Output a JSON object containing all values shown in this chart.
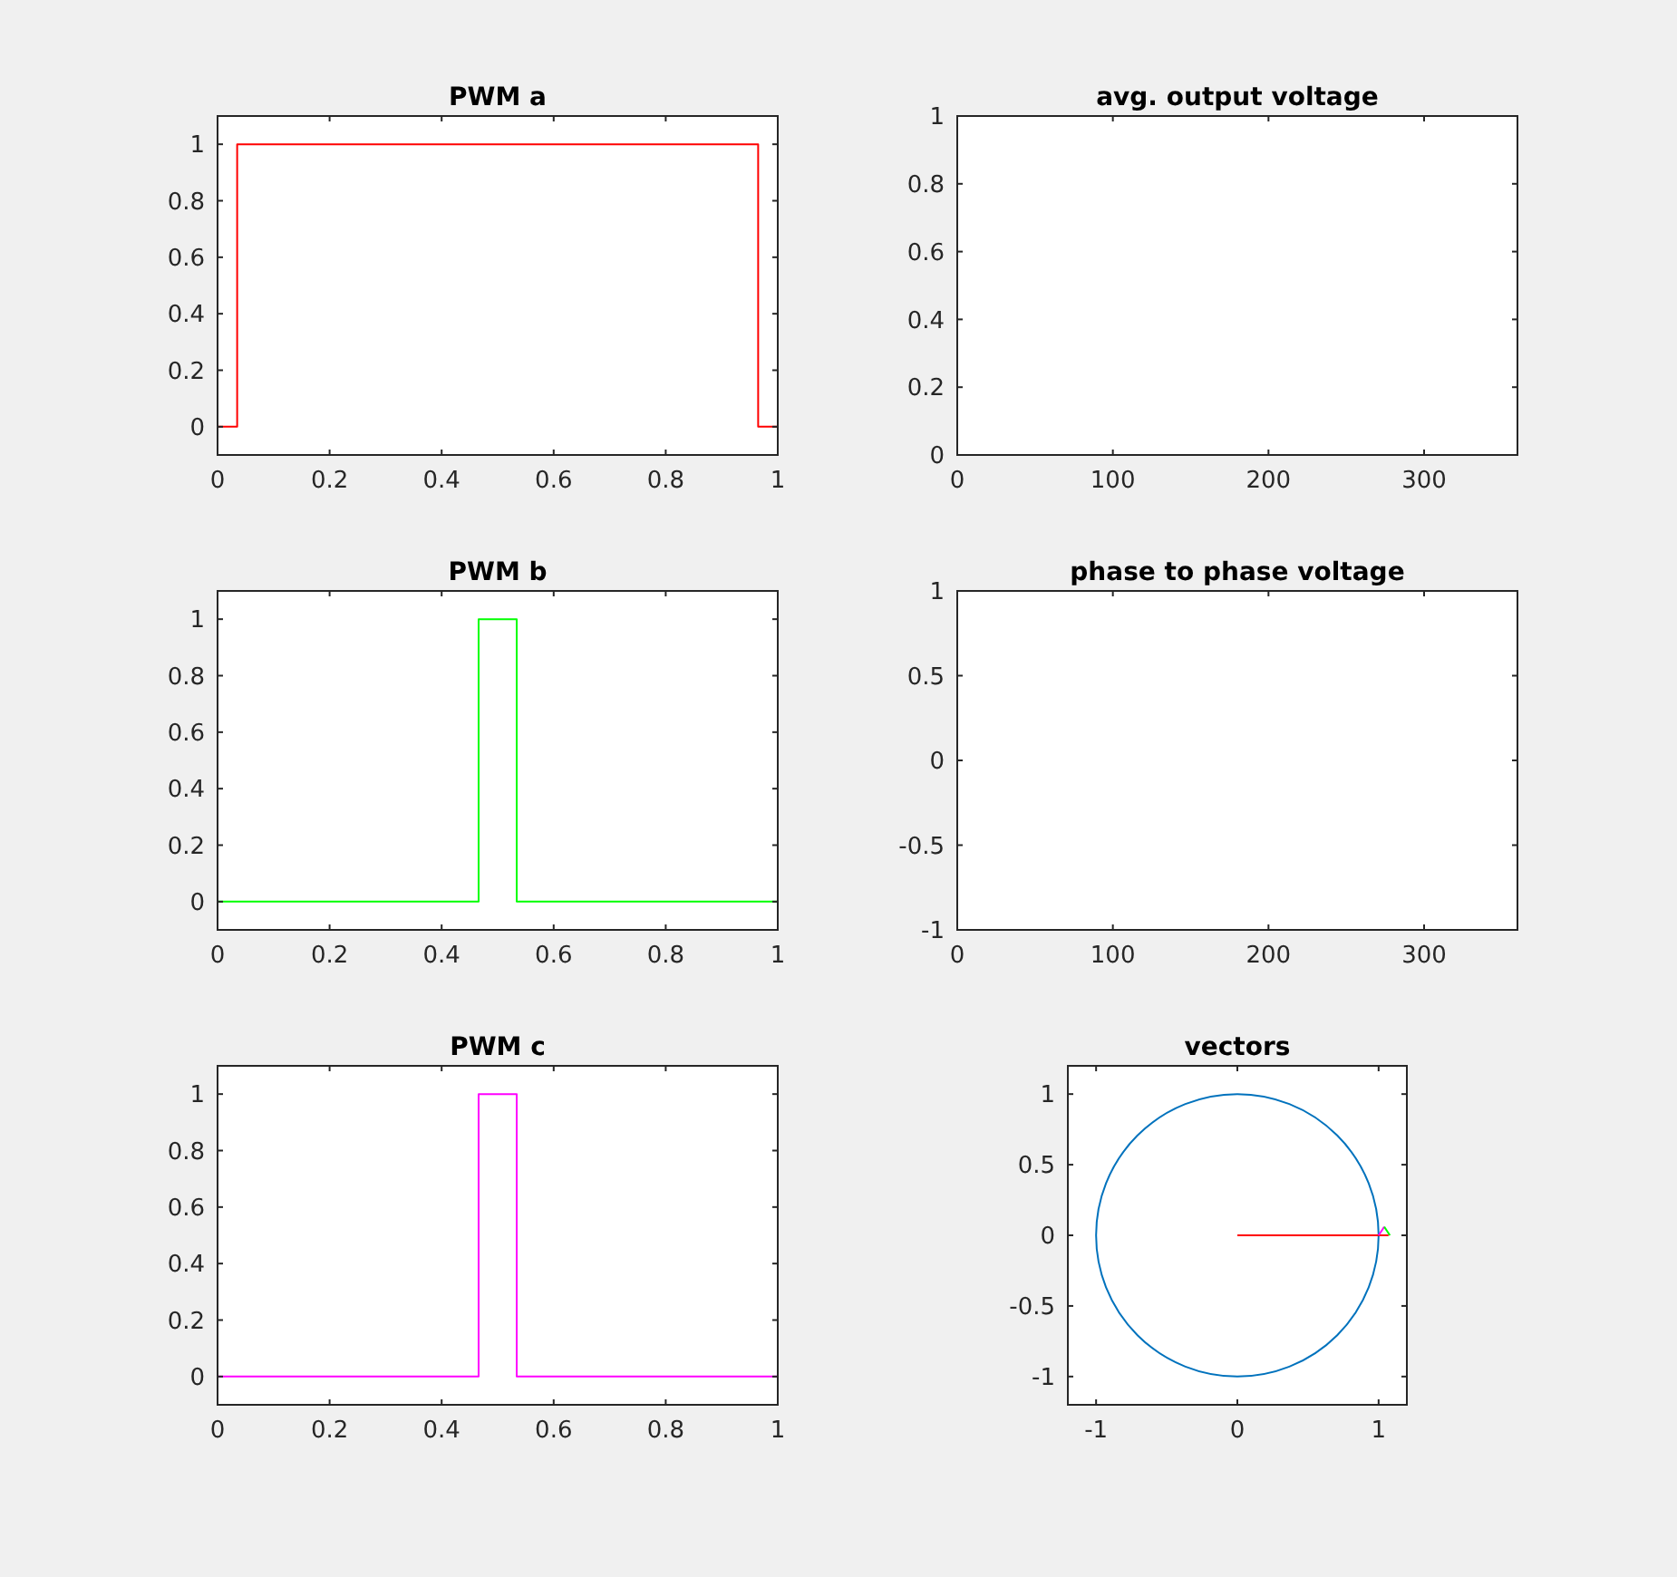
{
  "chart_data": [
    {
      "type": "step",
      "title": "PWM a",
      "xlim": [
        0,
        1
      ],
      "xticks": [
        0,
        0.2,
        0.4,
        0.6,
        0.8,
        1
      ],
      "ylim": [
        -0.1,
        1.1
      ],
      "yticks": [
        0,
        0.2,
        0.4,
        0.6,
        0.8,
        1
      ],
      "series": [
        {
          "color": "#ff0000",
          "x": [
            0,
            0.035,
            0.965,
            1
          ],
          "values": [
            0,
            1,
            0,
            0
          ]
        }
      ]
    },
    {
      "type": "line",
      "title": "avg. output voltage",
      "xlim": [
        0,
        360
      ],
      "xticks": [
        0,
        100,
        200,
        300
      ],
      "ylim": [
        0,
        1
      ],
      "yticks": [
        0,
        0.2,
        0.4,
        0.6,
        0.8,
        1
      ]
    },
    {
      "type": "step",
      "title": "PWM b",
      "xlim": [
        0,
        1
      ],
      "xticks": [
        0,
        0.2,
        0.4,
        0.6,
        0.8,
        1
      ],
      "ylim": [
        -0.1,
        1.1
      ],
      "yticks": [
        0,
        0.2,
        0.4,
        0.6,
        0.8,
        1
      ],
      "series": [
        {
          "color": "#00ff00",
          "x": [
            0,
            0.466,
            0.534,
            1
          ],
          "values": [
            0,
            1,
            0,
            0
          ]
        }
      ]
    },
    {
      "type": "line",
      "title": "phase to phase voltage",
      "xlim": [
        0,
        360
      ],
      "xticks": [
        0,
        100,
        200,
        300
      ],
      "ylim": [
        -1,
        1
      ],
      "yticks": [
        -1,
        -0.5,
        0,
        0.5,
        1
      ]
    },
    {
      "type": "step",
      "title": "PWM c",
      "xlim": [
        0,
        1
      ],
      "xticks": [
        0,
        0.2,
        0.4,
        0.6,
        0.8,
        1
      ],
      "ylim": [
        -0.1,
        1.1
      ],
      "yticks": [
        0,
        0.2,
        0.4,
        0.6,
        0.8,
        1
      ],
      "series": [
        {
          "color": "#ff00ff",
          "x": [
            0,
            0.466,
            0.534,
            1
          ],
          "values": [
            0,
            1,
            0,
            0
          ]
        }
      ]
    },
    {
      "type": "line",
      "title": "vectors",
      "xlim": [
        -1.2,
        1.2
      ],
      "xticks": [
        -1,
        0,
        1
      ],
      "ylim": [
        -1.2,
        1.2
      ],
      "yticks": [
        -1,
        -0.5,
        0,
        0.5,
        1
      ],
      "series": [
        {
          "color": "#ff0000",
          "x": [
            0,
            1.07
          ],
          "values": [
            0,
            0
          ]
        },
        {
          "color": "#ff00ff",
          "x": [
            1,
            1.04
          ],
          "values": [
            0,
            0.06
          ]
        },
        {
          "color": "#00ff00",
          "x": [
            1.04,
            1.08
          ],
          "values": [
            0.06,
            0
          ]
        }
      ]
    }
  ]
}
